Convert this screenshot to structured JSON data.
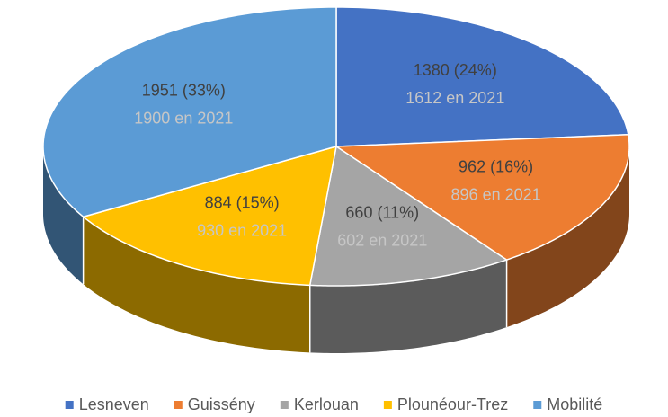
{
  "chart_data": {
    "type": "pie3d",
    "categories": [
      "Lesneven",
      "Guissény",
      "Kerlouan",
      "Plounéour-Trez",
      "Mobilité"
    ],
    "values": [
      1380,
      962,
      660,
      884,
      1951
    ],
    "value_labels": [
      "1380 (24%)",
      "962 (16%)",
      "660 (11%)",
      "884 (15%)",
      "1951 (33%)"
    ],
    "annotations": [
      "1612 en 2021",
      "896 en 2021",
      "602 en 2021",
      "930 en 2021",
      "1900 en 2021"
    ],
    "colors": [
      "#4472c4",
      "#ed7d31",
      "#a5a5a5",
      "#ffc000",
      "#5b9bd5"
    ],
    "legend": "bottom"
  }
}
